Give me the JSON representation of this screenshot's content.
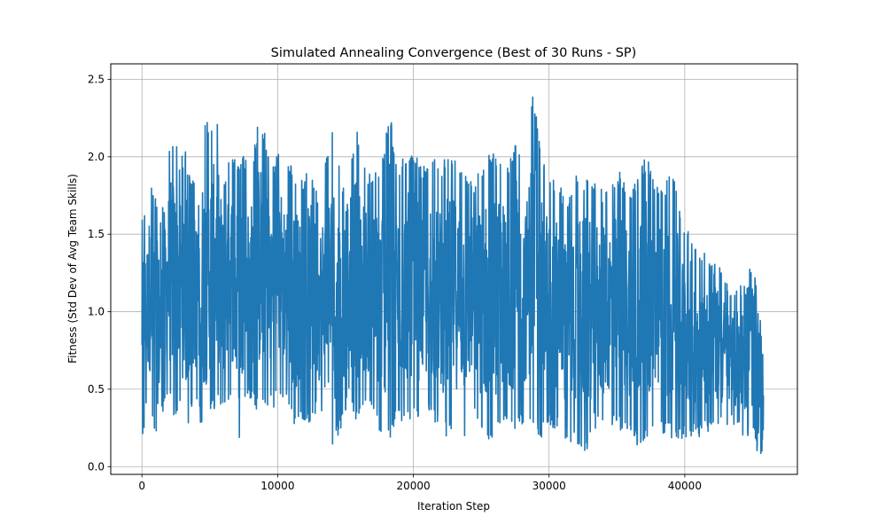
{
  "chart_data": {
    "type": "line",
    "title": "Simulated Annealing Convergence (Best of 30 Runs - SP)",
    "xlabel": "Iteration Step",
    "ylabel": "Fitness (Std Dev of Avg Team Skills)",
    "xlim": [
      -2300,
      48300
    ],
    "ylim": [
      -0.05,
      2.6
    ],
    "xticks": [
      0,
      10000,
      20000,
      30000,
      40000
    ],
    "xtick_labels": [
      "0",
      "10000",
      "20000",
      "30000",
      "40000"
    ],
    "yticks": [
      0.0,
      0.5,
      1.0,
      1.5,
      2.0,
      2.5
    ],
    "ytick_labels": [
      "0.0",
      "0.5",
      "1.0",
      "1.5",
      "2.0",
      "2.5"
    ],
    "grid": true,
    "line_color": "#1f77b4",
    "series": [
      {
        "x": [
          0,
          100,
          300,
          600,
          1000,
          1300,
          1700,
          2000,
          2400,
          2800,
          3200,
          3600,
          4000,
          4600,
          5000,
          5600,
          6000,
          6600,
          7100,
          7500,
          8000,
          8700,
          9200,
          9600,
          10200,
          10700,
          11200,
          11800,
          12400,
          13000,
          13600,
          14100,
          14700,
          15200,
          15800,
          16400,
          17000,
          17600,
          18300,
          18800,
          19400,
          20000,
          20600,
          21300,
          21900,
          22500,
          23100,
          23800,
          24400,
          25100,
          25700,
          26300,
          27000,
          27600,
          28300,
          28800,
          29400,
          30000,
          30700,
          31300,
          32000,
          32700,
          33300,
          34000,
          34600,
          35300,
          35900,
          36500,
          37200,
          37800,
          38500,
          39100,
          39800,
          40400,
          41000,
          41600,
          42200,
          42800,
          43400,
          44000,
          44500,
          45000,
          45400,
          45800
        ],
        "max": [
          1.88,
          1.73,
          1.59,
          1.89,
          1.75,
          1.6,
          1.75,
          2.07,
          2.16,
          2.0,
          2.05,
          1.84,
          1.86,
          2.24,
          2.23,
          2.24,
          1.85,
          2.04,
          1.96,
          2.01,
          1.91,
          2.3,
          2.09,
          1.96,
          2.05,
          1.97,
          1.93,
          1.85,
          1.96,
          1.74,
          2.02,
          2.18,
          1.84,
          1.95,
          2.18,
          1.96,
          1.87,
          1.97,
          2.3,
          1.9,
          2.04,
          2.04,
          1.93,
          2.04,
          1.91,
          2.04,
          2.01,
          1.95,
          1.85,
          1.95,
          2.06,
          2.01,
          1.93,
          2.15,
          1.91,
          2.48,
          2.0,
          1.9,
          1.85,
          1.72,
          1.88,
          1.88,
          1.85,
          1.78,
          1.84,
          1.92,
          1.79,
          1.89,
          2.01,
          1.82,
          1.84,
          1.92,
          1.58,
          1.56,
          1.4,
          1.37,
          1.33,
          1.27,
          1.11,
          1.21,
          1.15,
          1.39,
          1.07,
          0.84
        ],
        "min": [
          0.16,
          0.1,
          0.38,
          0.39,
          0.14,
          0.21,
          0.43,
          0.41,
          0.31,
          0.41,
          0.21,
          0.33,
          0.4,
          0.18,
          0.31,
          0.4,
          0.34,
          0.48,
          0.05,
          0.42,
          0.44,
          0.32,
          0.36,
          0.37,
          0.45,
          0.42,
          0.25,
          0.31,
          0.28,
          0.36,
          0.19,
          0.11,
          0.25,
          0.42,
          0.29,
          0.34,
          0.37,
          0.18,
          0.15,
          0.32,
          0.26,
          0.33,
          0.28,
          0.32,
          0.24,
          0.18,
          0.24,
          0.19,
          0.33,
          0.16,
          0.11,
          0.2,
          0.28,
          0.19,
          0.31,
          0.28,
          0.17,
          0.25,
          0.22,
          0.15,
          0.15,
          0.06,
          0.25,
          0.21,
          0.25,
          0.23,
          0.23,
          0.12,
          0.16,
          0.27,
          0.2,
          0.18,
          0.17,
          0.19,
          0.19,
          0.21,
          0.27,
          0.23,
          0.19,
          0.22,
          0.19,
          0.2,
          0.05,
          0.05
        ]
      }
    ]
  }
}
